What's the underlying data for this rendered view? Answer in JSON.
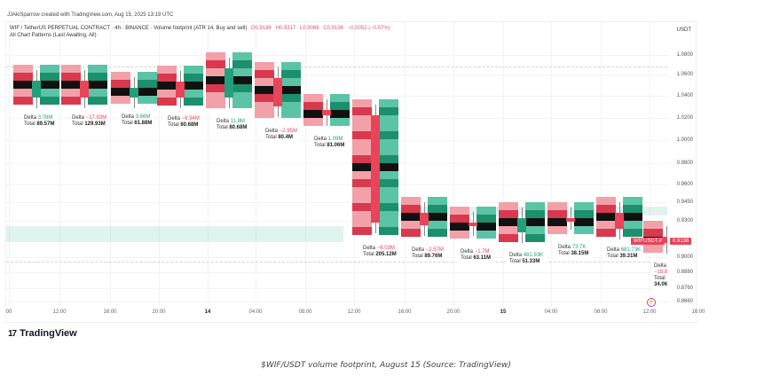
{
  "header": {
    "credit": "JJAkiSparrow created with TradingView.com, Aug 15, 2025 13:19 UTC",
    "symbol_line": "WIF / TetherUS PERPETUAL CONTRACT · 4h · BINANCE · Volume footprint (ATR 14, Buy and sell)",
    "ohlc": {
      "open": "O0.9188",
      "high": "H0.9317",
      "low": "L0.9086",
      "close": "C0.9136",
      "change": "−0.0052 (−0.57%)"
    },
    "patterns": "All Chart Patterns (Last Awaiting, All)"
  },
  "y_axis": {
    "unit": "USDT",
    "labels": [
      "1.0800",
      "1.0600",
      "1.0400",
      "1.0200",
      "1.0000",
      "0.9800",
      "0.9600",
      "0.9450",
      "0.9300",
      "0.9000",
      "0.8880",
      "0.8760",
      "0.8660"
    ]
  },
  "price_tag": {
    "symbol": "WIFUSDT.P",
    "price": "0.9136"
  },
  "x_axis": {
    "labels": [
      {
        "text": "00",
        "bold": false
      },
      {
        "text": "12:00",
        "bold": false
      },
      {
        "text": "16:00",
        "bold": false
      },
      {
        "text": "20:00",
        "bold": false
      },
      {
        "text": "14",
        "bold": true
      },
      {
        "text": "04:00",
        "bold": false
      },
      {
        "text": "08:00",
        "bold": false
      },
      {
        "text": "12:00",
        "bold": false
      },
      {
        "text": "16:00",
        "bold": false
      },
      {
        "text": "20:00",
        "bold": false
      },
      {
        "text": "15",
        "bold": true
      },
      {
        "text": "04:00",
        "bold": false
      },
      {
        "text": "08:00",
        "bold": false
      },
      {
        "text": "12:00",
        "bold": false
      },
      {
        "text": "16:00",
        "bold": false
      }
    ]
  },
  "deltas": [
    {
      "delta": "3.78M",
      "total": "89.57M",
      "sign": "pos"
    },
    {
      "delta": "−17.83M",
      "total": "129.93M",
      "sign": "neg"
    },
    {
      "delta": "3.66M",
      "total": "61.88M",
      "sign": "pos"
    },
    {
      "delta": "−6.94M",
      "total": "60.68M",
      "sign": "neg"
    },
    {
      "delta": "11.8M",
      "total": "80.68M",
      "sign": "pos"
    },
    {
      "delta": "−2.95M",
      "total": "80.4M",
      "sign": "neg"
    },
    {
      "delta": "1.09M",
      "total": "81.06M",
      "sign": "pos"
    },
    {
      "delta": "−6.03M",
      "total": "205.12M",
      "sign": "neg"
    },
    {
      "delta": "−2.57M",
      "total": "89.76M",
      "sign": "neg"
    },
    {
      "delta": "−1.7M",
      "total": "63.11M",
      "sign": "neg"
    },
    {
      "delta": "481.93K",
      "total": "51.33M",
      "sign": "pos"
    },
    {
      "delta": "73.7K",
      "total": "38.15M",
      "sign": "pos"
    },
    {
      "delta": "681.73K",
      "total": "39.31M",
      "sign": "pos"
    },
    {
      "delta": "−18.83K",
      "total": "34.06M",
      "sign": "neg"
    }
  ],
  "labels": {
    "delta": "Delta",
    "total": "Total"
  },
  "footer": {
    "logo_mark": "17",
    "logo_text": "TradingView",
    "caption": "$WIF/USDT volume footprint, August 15 (Source: TradingView)"
  },
  "chart_data": {
    "type": "candlestick-footprint",
    "title": "WIF / TetherUS PERPETUAL CONTRACT · 4h · BINANCE · Volume footprint",
    "xlabel": "",
    "ylabel": "USDT",
    "ylim": [
      0.866,
      1.09
    ],
    "x": [
      "13 08:00",
      "13 12:00",
      "13 16:00",
      "13 20:00",
      "14 00:00",
      "14 04:00",
      "14 08:00",
      "14 12:00",
      "14 16:00",
      "14 20:00",
      "15 00:00",
      "15 04:00",
      "15 08:00",
      "15 12:00"
    ],
    "open": [
      1.032,
      1.046,
      1.032,
      1.045,
      1.032,
      1.048,
      1.022,
      1.018,
      0.938,
      0.93,
      0.922,
      0.934,
      0.938,
      0.9188
    ],
    "close": [
      1.046,
      1.032,
      1.04,
      1.032,
      1.056,
      1.025,
      1.018,
      0.93,
      0.928,
      0.928,
      0.934,
      0.933,
      0.925,
      0.9136
    ],
    "delta": [
      "3.78M",
      "-17.83M",
      "3.66M",
      "-6.94M",
      "11.8M",
      "-2.95M",
      "1.09M",
      "-6.03M",
      "-2.57M",
      "-1.7M",
      "481.93K",
      "73.7K",
      "681.73K",
      "-18.83K"
    ],
    "total": [
      "89.57M",
      "129.93M",
      "61.88M",
      "60.68M",
      "80.68M",
      "80.4M",
      "81.06M",
      "205.12M",
      "89.76M",
      "63.11M",
      "51.33M",
      "38.15M",
      "39.31M",
      "34.06M"
    ],
    "highlight_zone": [
      0.912,
      0.924
    ],
    "last_price": 0.9136,
    "grid": true
  }
}
